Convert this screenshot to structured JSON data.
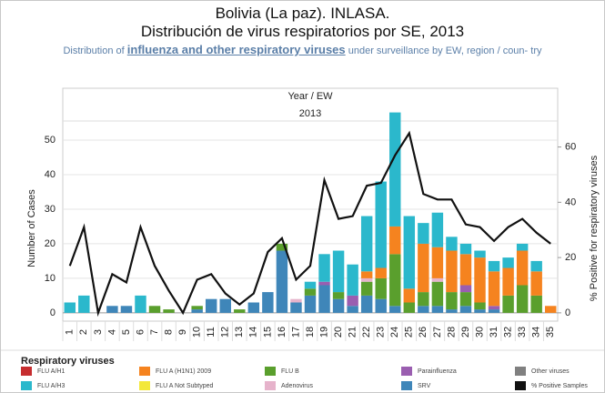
{
  "chart_data": {
    "type": "bar",
    "title": "Bolivia (La paz). INLASA.",
    "title_2": "Distribución de virus respiratorios por SE, 2013",
    "subtitle": [
      "Distribution of",
      "influenza and other respiratory viruses",
      "under surveillance by EW, region / coun-",
      "try"
    ],
    "x_header": "Year  /  EW",
    "year": "2013",
    "ylabel": "Number of Cases",
    "y2label": "% Positive for respiratory viruses",
    "legend_title": "Respiratory viruses",
    "categories": [
      "1",
      "2",
      "3",
      "4",
      "5",
      "6",
      "7",
      "8",
      "9",
      "10",
      "11",
      "12",
      "13",
      "14",
      "15",
      "16",
      "17",
      "18",
      "19",
      "20",
      "21",
      "22",
      "23",
      "24",
      "25",
      "26",
      "27",
      "28",
      "29",
      "30",
      "31",
      "32",
      "33",
      "34",
      "35"
    ],
    "ylim": [
      -2.4,
      60
    ],
    "yticks": [
      0,
      10,
      20,
      30,
      40,
      50
    ],
    "y2lim": [
      -3,
      75
    ],
    "y2ticks": [
      0,
      20,
      40,
      60
    ],
    "grid": true,
    "series": [
      {
        "name": "FLU A/H1",
        "color": "#c62d2f",
        "values": [
          0,
          0,
          0,
          0,
          0,
          0,
          0,
          0,
          0,
          0,
          0,
          0,
          0,
          0,
          0,
          0,
          0,
          0,
          0,
          0,
          0,
          0,
          0,
          0,
          0,
          0,
          0,
          0,
          0,
          0,
          0,
          0,
          0,
          0,
          0
        ]
      },
      {
        "name": "FLU A/H3",
        "color": "#2bb8cc",
        "values": [
          3,
          5,
          0,
          0,
          0,
          5,
          0,
          0,
          0,
          0,
          0,
          0,
          0,
          0,
          0,
          0,
          0,
          2,
          8,
          12,
          9,
          16,
          25,
          33,
          21,
          6,
          10,
          4,
          3,
          2,
          3,
          3,
          2,
          3,
          0
        ]
      },
      {
        "name": "FLU A (H1N1) 2009",
        "color": "#f5831f",
        "values": [
          0,
          0,
          0,
          0,
          0,
          0,
          0,
          0,
          0,
          0,
          0,
          0,
          0,
          0,
          0,
          0,
          0,
          0,
          0,
          0,
          0,
          2,
          3,
          8,
          4,
          14,
          9,
          12,
          9,
          13,
          10,
          8,
          10,
          7,
          2
        ]
      },
      {
        "name": "FLU A Not Subtyped",
        "color": "#f3e83a",
        "values": [
          0,
          0,
          0,
          0,
          0,
          0,
          0,
          0,
          0,
          0,
          0,
          0,
          0,
          0,
          0,
          0,
          0,
          0,
          0,
          0,
          0,
          0,
          0,
          0,
          0,
          0,
          0,
          0,
          0,
          0,
          0,
          0,
          0,
          0,
          0
        ]
      },
      {
        "name": "FLU B",
        "color": "#5a9f2d",
        "values": [
          0,
          0,
          0,
          0,
          0,
          0,
          2,
          1,
          0,
          1,
          0,
          0,
          1,
          0,
          0,
          2,
          0,
          2,
          0,
          2,
          0,
          4,
          6,
          15,
          3,
          4,
          7,
          5,
          4,
          2,
          0,
          5,
          8,
          5,
          0
        ]
      },
      {
        "name": "Adenovirus",
        "color": "#e6b3cb",
        "values": [
          0,
          0,
          0,
          0,
          0,
          0,
          0,
          0,
          0,
          0,
          0,
          0,
          0,
          0,
          0,
          0,
          1,
          0,
          0,
          0,
          0,
          1,
          0,
          0,
          0,
          0,
          1,
          0,
          0,
          0,
          0,
          0,
          0,
          0,
          0
        ]
      },
      {
        "name": "Parainfluenza",
        "color": "#9a5eb0",
        "values": [
          0,
          0,
          0,
          0,
          0,
          0,
          0,
          0,
          0,
          0,
          0,
          0,
          0,
          0,
          0,
          0,
          0,
          0,
          1,
          0,
          3,
          0,
          0,
          0,
          0,
          0,
          0,
          0,
          2,
          0,
          1,
          0,
          0,
          0,
          0
        ]
      },
      {
        "name": "SRV",
        "color": "#3f86b9",
        "values": [
          0,
          0,
          0,
          2,
          2,
          0,
          0,
          0,
          0,
          1,
          4,
          4,
          0,
          3,
          6,
          18,
          3,
          5,
          8,
          4,
          2,
          5,
          4,
          2,
          0,
          2,
          2,
          1,
          2,
          1,
          1,
          0,
          0,
          0,
          0
        ]
      },
      {
        "name": "Other viruses",
        "color": "#808080",
        "values": [
          0,
          0,
          0,
          0,
          0,
          0,
          0,
          0,
          0,
          0,
          0,
          0,
          0,
          0,
          0,
          0,
          0,
          0,
          0,
          0,
          0,
          0,
          0,
          0,
          0,
          0,
          0,
          0,
          0,
          0,
          0,
          0,
          0,
          0,
          0
        ]
      },
      {
        "name": "% Positive Samples",
        "color": "#111111",
        "axis": "y2",
        "values": [
          17,
          31,
          0,
          14,
          11,
          31,
          17,
          8,
          0,
          12,
          14,
          7,
          3,
          7,
          22,
          27,
          12,
          17,
          48,
          34,
          35,
          46,
          47,
          57,
          65,
          43,
          41,
          41,
          32,
          31,
          26,
          31,
          34,
          29,
          25
        ]
      }
    ]
  }
}
